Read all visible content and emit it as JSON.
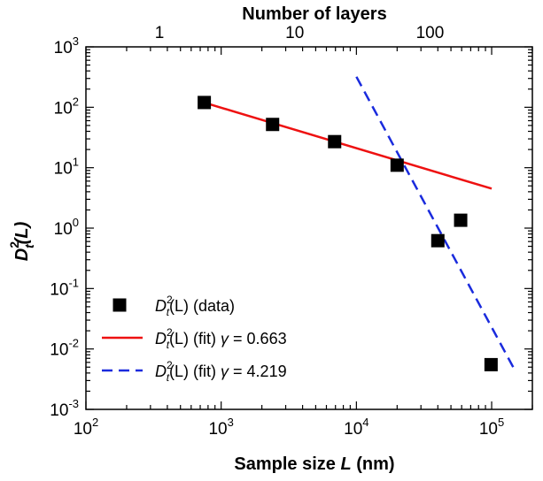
{
  "chart_data": {
    "type": "scatter",
    "xlabel": "Sample size L (nm)",
    "xlabel_parts": {
      "before": "Sample size ",
      "italic": "L",
      "after": " (nm)"
    },
    "x2label": "Number of layers",
    "ylabel_parts": {
      "base": "D",
      "sup": "2",
      "sub": "t",
      "arg": "(L)"
    },
    "x_scale": "log",
    "y_scale": "log",
    "xlim": [
      100,
      200000
    ],
    "ylim": [
      0.001,
      1000
    ],
    "top_ticks": [
      {
        "label": "1",
        "x": 350
      },
      {
        "label": "10",
        "x": 3500
      },
      {
        "label": "100",
        "x": 35000
      }
    ],
    "x_ticks": [
      {
        "base": "10",
        "exp": "2",
        "value": 100
      },
      {
        "base": "10",
        "exp": "3",
        "value": 1000
      },
      {
        "base": "10",
        "exp": "4",
        "value": 10000
      },
      {
        "base": "10",
        "exp": "5",
        "value": 100000
      }
    ],
    "y_ticks": [
      {
        "base": "10",
        "exp": "-3",
        "value": 0.001
      },
      {
        "base": "10",
        "exp": "-2",
        "value": 0.01
      },
      {
        "base": "10",
        "exp": "-1",
        "value": 0.1
      },
      {
        "base": "10",
        "exp": "0",
        "value": 1
      },
      {
        "base": "10",
        "exp": "1",
        "value": 10
      },
      {
        "base": "10",
        "exp": "2",
        "value": 100
      },
      {
        "base": "10",
        "exp": "3",
        "value": 1000
      }
    ],
    "series": [
      {
        "name": "D_t^2(L) (data)",
        "kind": "scatter",
        "color": "#000000",
        "points": [
          {
            "x": 750,
            "y": 120
          },
          {
            "x": 2400,
            "y": 52
          },
          {
            "x": 6900,
            "y": 27
          },
          {
            "x": 20000,
            "y": 11
          },
          {
            "x": 40000,
            "y": 0.62
          },
          {
            "x": 59000,
            "y": 1.35
          },
          {
            "x": 99000,
            "y": 0.0055
          }
        ]
      },
      {
        "name": "D_t^2(L) (fit) γ = 0.663",
        "kind": "line",
        "style": "solid",
        "color": "#ee1111",
        "points": [
          {
            "x": 700,
            "y": 125
          },
          {
            "x": 100000,
            "y": 4.5
          }
        ]
      },
      {
        "name": "D_t^2(L) (fit) γ = 4.219",
        "kind": "line",
        "style": "dashed",
        "color": "#1a2bdd",
        "points": [
          {
            "x": 10000,
            "y": 320
          },
          {
            "x": 145000,
            "y": 0.0049
          }
        ]
      }
    ],
    "legend": {
      "placement": "bottom-left",
      "entries": [
        {
          "prefix": "D",
          "sup": "2",
          "sub": "t",
          "arg": "(L)",
          "suffix": " (data)",
          "greek": "",
          "value": ""
        },
        {
          "prefix": "D",
          "sup": "2",
          "sub": "t",
          "arg": "(L)",
          "suffix": " (fit) ",
          "greek": "γ",
          "value": " = 0.663"
        },
        {
          "prefix": "D",
          "sup": "2",
          "sub": "t",
          "arg": "(L)",
          "suffix": " (fit) ",
          "greek": "γ",
          "value": " = 4.219"
        }
      ]
    }
  }
}
